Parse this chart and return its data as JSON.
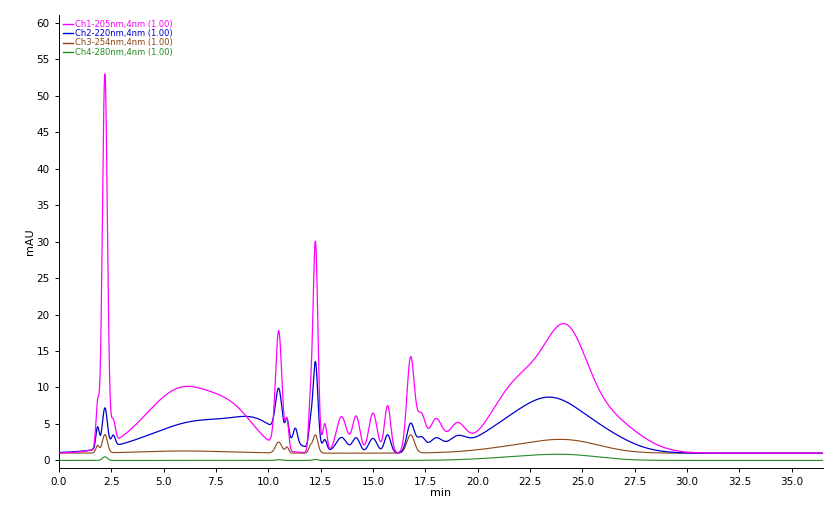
{
  "title": "",
  "ylabel": "mAU",
  "xlabel": "min",
  "xlim": [
    0.0,
    36.5
  ],
  "ylim": [
    -1,
    61
  ],
  "yticks": [
    0,
    5,
    10,
    15,
    20,
    25,
    30,
    35,
    40,
    45,
    50,
    55,
    60
  ],
  "xticks": [
    0.0,
    2.5,
    5.0,
    7.5,
    10.0,
    12.5,
    15.0,
    17.5,
    20.0,
    22.5,
    25.0,
    27.5,
    30.0,
    32.5,
    35.0
  ],
  "background_color": "#ffffff",
  "channels": [
    {
      "label": "Ch1-205nm,4nm (1.00)",
      "color": "#ff00ff"
    },
    {
      "label": "Ch2-220nm,4nm (1.00)",
      "color": "#0000cd"
    },
    {
      "label": "Ch3-254nm,4nm (1.00)",
      "color": "#8B4513"
    },
    {
      "label": "Ch4-280nm,4nm (1.00)",
      "color": "#228B22"
    }
  ]
}
